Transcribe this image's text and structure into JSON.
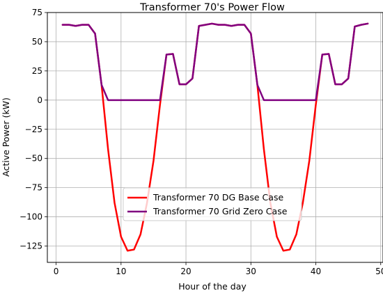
{
  "chart_data": {
    "type": "line",
    "title": "Transformer 70's Power Flow",
    "xlabel": "Hour of the day",
    "ylabel": "Active Power (kW)",
    "xlim": [
      -1.35,
      50.35
    ],
    "ylim": [
      -139,
      75
    ],
    "xticks": [
      0,
      10,
      20,
      30,
      40,
      50
    ],
    "yticks": [
      -125,
      -100,
      -75,
      -50,
      -25,
      0,
      25,
      50,
      75
    ],
    "xtick_labels": [
      "0",
      "10",
      "20",
      "30",
      "40",
      "50"
    ],
    "ytick_labels": [
      "−125",
      "−100",
      "−75",
      "−50",
      "−25",
      "0",
      "25",
      "50",
      "75"
    ],
    "grid": true,
    "legend": {
      "placement": "lower-center"
    },
    "x": [
      1,
      2,
      3,
      4,
      5,
      6,
      7,
      8,
      9,
      10,
      11,
      12,
      13,
      14,
      15,
      16,
      17,
      18,
      19,
      20,
      21,
      22,
      23,
      24,
      25,
      26,
      27,
      28,
      29,
      30,
      31,
      32,
      33,
      34,
      35,
      36,
      37,
      38,
      39,
      40,
      41,
      42,
      43,
      44,
      45,
      46,
      47,
      48
    ],
    "series": [
      {
        "name": "Transformer 70 DG Base Case",
        "color": "#ff0000",
        "values": [
          64.5,
          64.5,
          63.5,
          64.5,
          64.5,
          57,
          13,
          -42,
          -88,
          -117,
          -129,
          -128,
          -115,
          -88,
          -52,
          -4,
          39,
          39.5,
          13.5,
          13.5,
          18.5,
          63.5,
          64.5,
          65.5,
          64.5,
          64.5,
          63.5,
          64.5,
          64.5,
          57,
          13,
          -42,
          -88,
          -117,
          -129,
          -128,
          -115,
          -88,
          -52,
          -4,
          39,
          39.5,
          13.5,
          13.5,
          18.5,
          63,
          64.5,
          65.5
        ]
      },
      {
        "name": "Transformer 70 Grid Zero Case",
        "color": "#800080",
        "values": [
          64.5,
          64.5,
          63.5,
          64.5,
          64.5,
          57,
          13,
          0,
          0,
          0,
          0,
          0,
          0,
          0,
          0,
          0,
          39,
          39.5,
          13.5,
          13.5,
          18.5,
          63.5,
          64.5,
          65.5,
          64.5,
          64.5,
          63.5,
          64.5,
          64.5,
          57,
          13,
          0,
          0,
          0,
          0,
          0,
          0,
          0,
          0,
          0,
          39,
          39.5,
          13.5,
          13.5,
          18.5,
          63,
          64.5,
          65.5
        ]
      }
    ]
  }
}
